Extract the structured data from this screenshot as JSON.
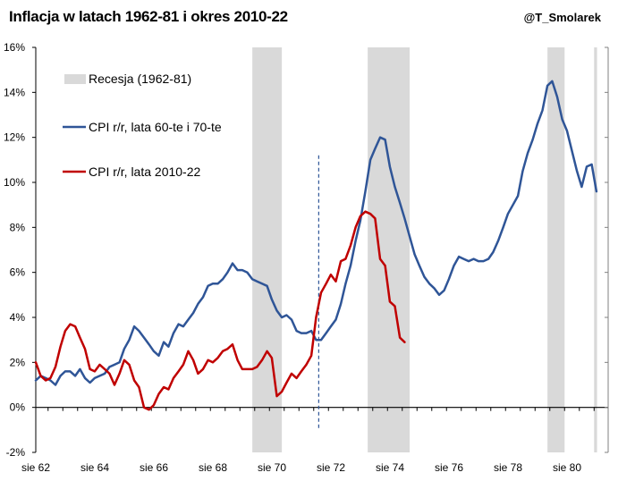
{
  "title": "Inflacja w latach 1962-81 i okres 2010-22",
  "author": "@T_Smolarek",
  "chart_data": {
    "type": "line",
    "title": "Inflacja w latach 1962-81 i okres 2010-22",
    "xlabel": "",
    "ylabel": "",
    "ylim": [
      -2,
      16
    ],
    "xlim": [
      1962.6,
      1981.6
    ],
    "x_ticks": [
      {
        "value": 1962.583,
        "label": "sie 62"
      },
      {
        "value": 1964.583,
        "label": "sie 64"
      },
      {
        "value": 1966.583,
        "label": "sie 66"
      },
      {
        "value": 1968.583,
        "label": "sie 68"
      },
      {
        "value": 1970.583,
        "label": "sie 70"
      },
      {
        "value": 1972.583,
        "label": "sie 72"
      },
      {
        "value": 1974.583,
        "label": "sie 74"
      },
      {
        "value": 1976.583,
        "label": "sie 76"
      },
      {
        "value": 1978.583,
        "label": "sie 78"
      },
      {
        "value": 1980.583,
        "label": "sie 80"
      }
    ],
    "y_ticks": [
      {
        "value": -2,
        "label": "-2%"
      },
      {
        "value": 0,
        "label": "0%"
      },
      {
        "value": 2,
        "label": "2%"
      },
      {
        "value": 4,
        "label": "4%"
      },
      {
        "value": 6,
        "label": "6%"
      },
      {
        "value": 8,
        "label": "8%"
      },
      {
        "value": 10,
        "label": "10%"
      },
      {
        "value": 12,
        "label": "12%"
      },
      {
        "value": 14,
        "label": "14%"
      },
      {
        "value": 16,
        "label": "16%"
      }
    ],
    "grid": false,
    "legend_placement": "top-left",
    "recessions": [
      {
        "start": 1969.92,
        "end": 1970.92
      },
      {
        "start": 1973.83,
        "end": 1975.25
      },
      {
        "start": 1979.92,
        "end": 1980.5
      },
      {
        "start": 1981.5,
        "end": 1981.6
      }
    ],
    "recession_label": "Recesja (1962-81)",
    "vline_x": 1972.17,
    "series": [
      {
        "name": "CPI r/r, lata 60-te i 70-te",
        "color": "#2f5597",
        "x": [
          1962.583,
          1962.75,
          1962.92,
          1963.08,
          1963.25,
          1963.42,
          1963.58,
          1963.75,
          1963.92,
          1964.08,
          1964.25,
          1964.42,
          1964.58,
          1964.75,
          1964.92,
          1965.08,
          1965.25,
          1965.42,
          1965.58,
          1965.75,
          1965.92,
          1966.08,
          1966.25,
          1966.42,
          1966.58,
          1966.75,
          1966.92,
          1967.08,
          1967.25,
          1967.42,
          1967.58,
          1967.75,
          1967.92,
          1968.08,
          1968.25,
          1968.42,
          1968.58,
          1968.75,
          1968.92,
          1969.08,
          1969.25,
          1969.42,
          1969.58,
          1969.75,
          1969.92,
          1970.08,
          1970.25,
          1970.42,
          1970.58,
          1970.75,
          1970.92,
          1971.08,
          1971.25,
          1971.42,
          1971.58,
          1971.75,
          1971.92,
          1972.08,
          1972.25,
          1972.42,
          1972.58,
          1972.75,
          1972.92,
          1973.08,
          1973.25,
          1973.42,
          1973.58,
          1973.75,
          1973.92,
          1974.08,
          1974.25,
          1974.42,
          1974.58,
          1974.75,
          1974.92,
          1975.08,
          1975.25,
          1975.42,
          1975.58,
          1975.75,
          1975.92,
          1976.08,
          1976.25,
          1976.42,
          1976.58,
          1976.75,
          1976.92,
          1977.08,
          1977.25,
          1977.42,
          1977.58,
          1977.75,
          1977.92,
          1978.08,
          1978.25,
          1978.42,
          1978.58,
          1978.75,
          1978.92,
          1979.08,
          1979.25,
          1979.42,
          1979.58,
          1979.75,
          1979.92,
          1980.08,
          1980.25,
          1980.42,
          1980.58,
          1980.75,
          1980.92,
          1981.08,
          1981.25,
          1981.42,
          1981.58
        ],
        "values": [
          1.2,
          1.4,
          1.3,
          1.2,
          1.0,
          1.4,
          1.6,
          1.6,
          1.4,
          1.7,
          1.3,
          1.1,
          1.3,
          1.4,
          1.5,
          1.8,
          1.9,
          2.0,
          2.6,
          3.0,
          3.6,
          3.4,
          3.1,
          2.8,
          2.5,
          2.3,
          2.9,
          2.7,
          3.3,
          3.7,
          3.6,
          3.9,
          4.2,
          4.6,
          4.9,
          5.4,
          5.5,
          5.5,
          5.7,
          6.0,
          6.4,
          6.1,
          6.1,
          6.0,
          5.7,
          5.6,
          5.5,
          5.4,
          4.8,
          4.3,
          4.0,
          4.1,
          3.9,
          3.4,
          3.3,
          3.3,
          3.4,
          3.0,
          3.0,
          3.3,
          3.6,
          3.9,
          4.6,
          5.5,
          6.3,
          7.4,
          8.3,
          9.6,
          11.0,
          11.5,
          12.0,
          11.9,
          10.7,
          9.8,
          9.1,
          8.4,
          7.6,
          6.8,
          6.3,
          5.8,
          5.5,
          5.3,
          5.0,
          5.2,
          5.7,
          6.3,
          6.7,
          6.6,
          6.5,
          6.6,
          6.5,
          6.5,
          6.6,
          6.9,
          7.4,
          8.0,
          8.6,
          9.0,
          9.4,
          10.5,
          11.3,
          11.9,
          12.6,
          13.2,
          14.3,
          14.5,
          13.8,
          12.8,
          12.3,
          11.4,
          10.5,
          9.8,
          10.7,
          10.8,
          9.6
        ]
      },
      {
        "name": "CPI r/r, lata 2010-22",
        "color": "#c00000",
        "x": [
          1962.583,
          1962.75,
          1962.92,
          1963.08,
          1963.25,
          1963.42,
          1963.58,
          1963.75,
          1963.92,
          1964.08,
          1964.25,
          1964.42,
          1964.58,
          1964.75,
          1964.92,
          1965.08,
          1965.25,
          1965.42,
          1965.58,
          1965.75,
          1965.92,
          1966.08,
          1966.25,
          1966.42,
          1966.58,
          1966.75,
          1966.92,
          1967.08,
          1967.25,
          1967.42,
          1967.58,
          1967.75,
          1967.92,
          1968.08,
          1968.25,
          1968.42,
          1968.58,
          1968.75,
          1968.92,
          1969.08,
          1969.25,
          1969.42,
          1969.58,
          1969.75,
          1969.92,
          1970.08,
          1970.25,
          1970.42,
          1970.58,
          1970.75,
          1970.92,
          1971.08,
          1971.25,
          1971.42,
          1971.58,
          1971.75,
          1971.92,
          1972.08,
          1972.25,
          1972.42,
          1972.58,
          1972.75,
          1972.92,
          1973.08,
          1973.25,
          1973.42,
          1973.58,
          1973.75,
          1973.92,
          1974.08,
          1974.25,
          1974.42,
          1974.58,
          1974.75,
          1974.92,
          1975.08
        ],
        "values": [
          2.0,
          1.4,
          1.2,
          1.3,
          1.8,
          2.7,
          3.4,
          3.7,
          3.6,
          3.1,
          2.6,
          1.7,
          1.6,
          1.9,
          1.7,
          1.5,
          1.0,
          1.5,
          2.1,
          1.9,
          1.2,
          0.9,
          0.0,
          -0.1,
          0.1,
          0.6,
          0.9,
          0.8,
          1.3,
          1.6,
          1.9,
          2.5,
          2.1,
          1.5,
          1.7,
          2.1,
          2.0,
          2.2,
          2.5,
          2.6,
          2.8,
          2.1,
          1.7,
          1.7,
          1.7,
          1.8,
          2.1,
          2.5,
          2.2,
          0.5,
          0.7,
          1.1,
          1.5,
          1.3,
          1.6,
          1.9,
          2.3,
          4.0,
          5.1,
          5.5,
          5.9,
          5.6,
          6.5,
          6.6,
          7.2,
          8.0,
          8.5,
          8.7,
          8.6,
          8.4,
          6.6,
          6.3,
          4.7,
          4.5,
          3.1,
          2.9
        ]
      }
    ]
  }
}
